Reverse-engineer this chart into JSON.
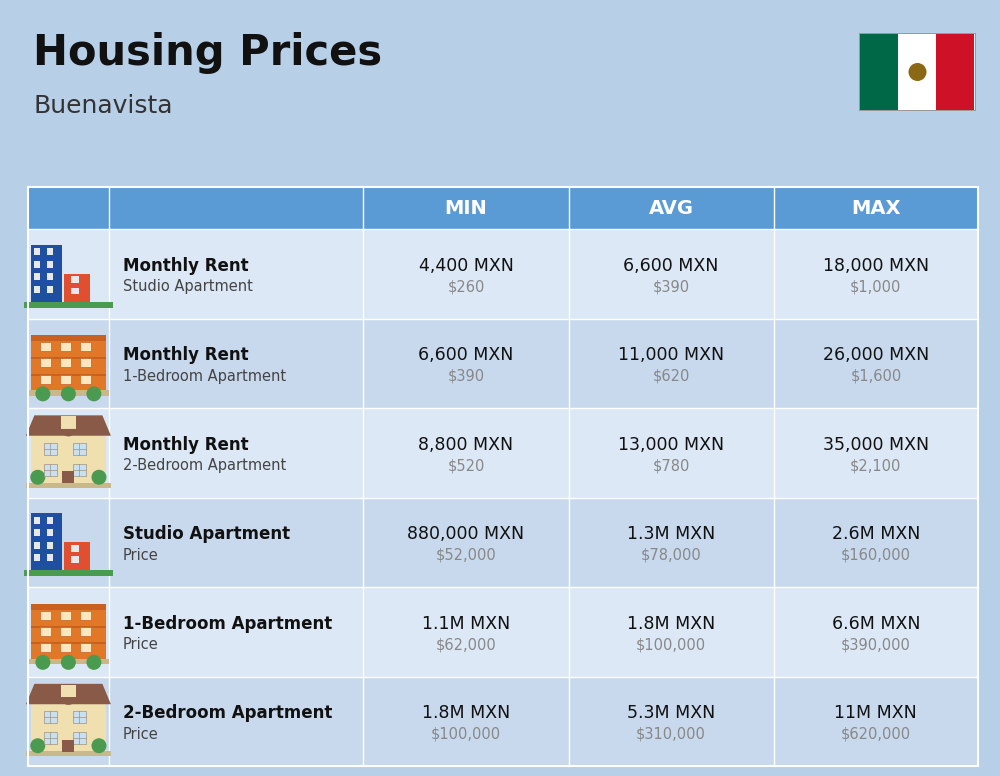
{
  "title": "Housing Prices",
  "subtitle": "Buenavista",
  "bg_color": "#b8cfe8",
  "header_bg": "#5b9bd5",
  "row_bg_even": "#dce8f5",
  "row_bg_odd": "#c8d9ed",
  "col_headers": [
    "MIN",
    "AVG",
    "MAX"
  ],
  "rows": [
    {
      "label_bold": "Monthly Rent",
      "label_sub": "Studio Apartment",
      "min_main": "4,400 MXN",
      "min_sub": "$260",
      "avg_main": "6,600 MXN",
      "avg_sub": "$390",
      "max_main": "18,000 MXN",
      "max_sub": "$1,000",
      "icon_type": "studio_blue"
    },
    {
      "label_bold": "Monthly Rent",
      "label_sub": "1-Bedroom Apartment",
      "min_main": "6,600 MXN",
      "min_sub": "$390",
      "avg_main": "11,000 MXN",
      "avg_sub": "$620",
      "max_main": "26,000 MXN",
      "max_sub": "$1,600",
      "icon_type": "apt_orange"
    },
    {
      "label_bold": "Monthly Rent",
      "label_sub": "2-Bedroom Apartment",
      "min_main": "8,800 MXN",
      "min_sub": "$520",
      "avg_main": "13,000 MXN",
      "avg_sub": "$780",
      "max_main": "35,000 MXN",
      "max_sub": "$2,100",
      "icon_type": "house_tan"
    },
    {
      "label_bold": "Studio Apartment",
      "label_sub": "Price",
      "min_main": "880,000 MXN",
      "min_sub": "$52,000",
      "avg_main": "1.3M MXN",
      "avg_sub": "$78,000",
      "max_main": "2.6M MXN",
      "max_sub": "$160,000",
      "icon_type": "studio_blue"
    },
    {
      "label_bold": "1-Bedroom Apartment",
      "label_sub": "Price",
      "min_main": "1.1M MXN",
      "min_sub": "$62,000",
      "avg_main": "1.8M MXN",
      "avg_sub": "$100,000",
      "max_main": "6.6M MXN",
      "max_sub": "$390,000",
      "icon_type": "apt_orange"
    },
    {
      "label_bold": "2-Bedroom Apartment",
      "label_sub": "Price",
      "min_main": "1.8M MXN",
      "min_sub": "$100,000",
      "avg_main": "5.3M MXN",
      "avg_sub": "$310,000",
      "max_main": "11M MXN",
      "max_sub": "$620,000",
      "icon_type": "house_tan"
    }
  ]
}
